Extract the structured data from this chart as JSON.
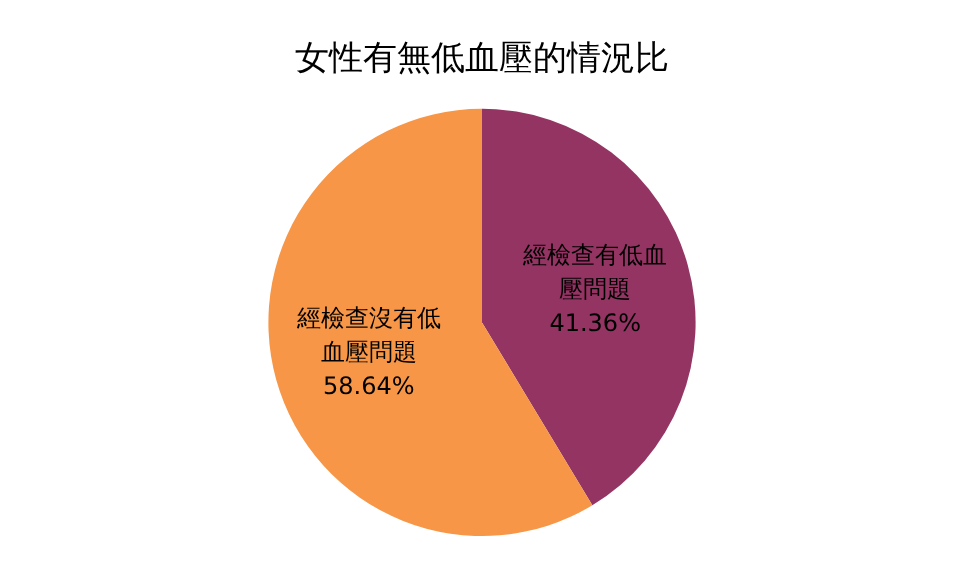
{
  "chart_data": {
    "type": "pie",
    "title": "女性有無低血壓的情況比",
    "categories": [
      "經檢查有低血壓問題",
      "經檢查沒有低血壓問題"
    ],
    "values": [
      41.36,
      58.64
    ],
    "colors": [
      "#943463",
      "#f79646"
    ],
    "value_labels": [
      "41.36%",
      "58.64%"
    ],
    "legend": false
  }
}
